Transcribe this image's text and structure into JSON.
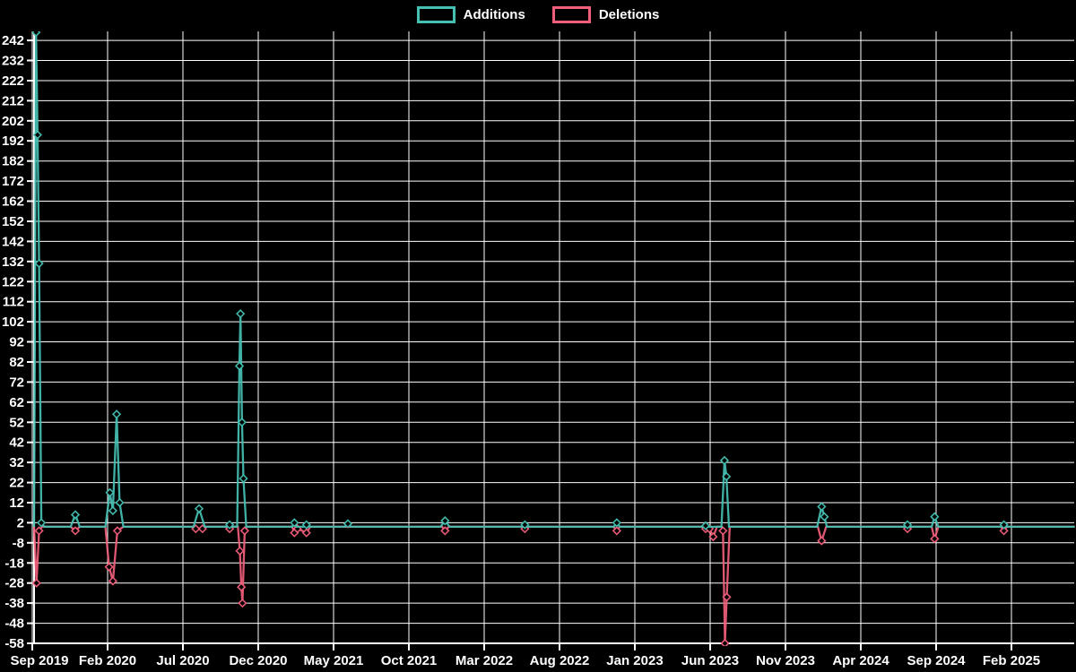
{
  "page": {
    "background": "#000000",
    "text_color": "#ffffff"
  },
  "legend": {
    "items": [
      {
        "label": "Additions",
        "color": "#45c0b2"
      },
      {
        "label": "Deletions",
        "color": "#f25f7c"
      }
    ]
  },
  "chart_data": {
    "type": "line",
    "title": "",
    "xlabel": "",
    "ylabel": "",
    "background_color": "#000000",
    "grid": {
      "horizontal": true,
      "vertical": true,
      "color": "#ffffff"
    },
    "axis_color": "#ffffff",
    "tick_label_color": "#ffffff",
    "legend_position": "top-center",
    "y_range": [
      -58,
      246.5
    ],
    "y_ticks": [
      242,
      232,
      222,
      212,
      202,
      192,
      182,
      172,
      162,
      152,
      142,
      132,
      122,
      112,
      102,
      92,
      82,
      72,
      62,
      52,
      42,
      32,
      22,
      12,
      2,
      -8,
      -18,
      -28,
      -38,
      -48,
      -58
    ],
    "x_tick_labels": [
      "Sep 2019",
      "Feb 2020",
      "Jul 2020",
      "Dec 2020",
      "May 2021",
      "Oct 2021",
      "Mar 2022",
      "Aug 2022",
      "Jan 2023",
      "Jun 2023",
      "Nov 2023",
      "Apr 2024",
      "Sep 2024",
      "Feb 2025"
    ],
    "x_tick_months": [
      0,
      5,
      10,
      15,
      20,
      25,
      30,
      35,
      40,
      45,
      50,
      55,
      60,
      65
    ],
    "x_range_months": [
      0,
      69.2
    ],
    "marker_shape": "diamond",
    "series": [
      {
        "name": "Additions",
        "color": "#45c0b2",
        "points": [
          [
            0.12,
            0
          ],
          [
            0.25,
            246
          ],
          [
            0.35,
            195
          ],
          [
            0.45,
            131
          ],
          [
            0.6,
            2
          ],
          [
            0.8,
            0
          ],
          [
            2.55,
            0
          ],
          [
            2.86,
            6
          ],
          [
            3.15,
            0
          ],
          [
            4.85,
            0
          ],
          [
            5.15,
            17
          ],
          [
            5.35,
            8
          ],
          [
            5.6,
            56
          ],
          [
            5.8,
            12
          ],
          [
            6.05,
            0
          ],
          [
            10.7,
            0
          ],
          [
            11.07,
            9
          ],
          [
            11.45,
            0
          ],
          [
            12.95,
            0
          ],
          [
            13.1,
            1
          ],
          [
            13.3,
            0
          ],
          [
            13.6,
            0
          ],
          [
            13.75,
            80
          ],
          [
            13.82,
            106
          ],
          [
            13.92,
            52
          ],
          [
            14.02,
            24
          ],
          [
            14.2,
            0
          ],
          [
            17.25,
            0
          ],
          [
            17.4,
            2
          ],
          [
            17.55,
            0
          ],
          [
            18.05,
            0
          ],
          [
            18.2,
            1
          ],
          [
            18.35,
            0
          ],
          [
            20.75,
            0
          ],
          [
            20.95,
            1.5
          ],
          [
            21.15,
            0
          ],
          [
            27.1,
            0
          ],
          [
            27.4,
            3
          ],
          [
            27.7,
            0
          ],
          [
            32.55,
            0
          ],
          [
            32.7,
            1
          ],
          [
            32.85,
            0
          ],
          [
            38.6,
            0
          ],
          [
            38.8,
            2
          ],
          [
            39.0,
            0
          ],
          [
            44.55,
            0
          ],
          [
            44.7,
            0.5
          ],
          [
            44.9,
            0
          ],
          [
            45.75,
            0
          ],
          [
            45.95,
            33
          ],
          [
            46.08,
            25
          ],
          [
            46.25,
            0
          ],
          [
            52.1,
            0
          ],
          [
            52.4,
            10
          ],
          [
            52.58,
            5
          ],
          [
            52.75,
            0
          ],
          [
            57.95,
            0
          ],
          [
            58.1,
            1
          ],
          [
            58.25,
            0
          ],
          [
            59.7,
            0
          ],
          [
            59.9,
            5
          ],
          [
            60.15,
            0
          ],
          [
            64.3,
            0
          ],
          [
            64.5,
            1
          ],
          [
            64.7,
            0
          ],
          [
            69.2,
            0
          ]
        ]
      },
      {
        "name": "Deletions",
        "color": "#f25f7c",
        "points": [
          [
            0.12,
            0
          ],
          [
            0.28,
            -28
          ],
          [
            0.45,
            -2
          ],
          [
            0.65,
            0
          ],
          [
            2.55,
            0
          ],
          [
            2.86,
            -2
          ],
          [
            3.15,
            0
          ],
          [
            4.85,
            0
          ],
          [
            5.1,
            -20
          ],
          [
            5.35,
            -27
          ],
          [
            5.65,
            -2
          ],
          [
            6.05,
            0
          ],
          [
            10.65,
            0
          ],
          [
            10.85,
            -1
          ],
          [
            11.3,
            -1
          ],
          [
            11.5,
            0
          ],
          [
            12.95,
            0
          ],
          [
            13.1,
            -1
          ],
          [
            13.3,
            0
          ],
          [
            13.65,
            0
          ],
          [
            13.78,
            -12
          ],
          [
            13.88,
            -30
          ],
          [
            13.95,
            -38
          ],
          [
            14.1,
            -2
          ],
          [
            14.25,
            0
          ],
          [
            17.25,
            0
          ],
          [
            17.4,
            -3
          ],
          [
            17.6,
            -1
          ],
          [
            18.2,
            -3
          ],
          [
            18.45,
            0
          ],
          [
            27.2,
            0
          ],
          [
            27.4,
            -2
          ],
          [
            27.65,
            0
          ],
          [
            32.55,
            0
          ],
          [
            32.7,
            -1
          ],
          [
            32.85,
            0
          ],
          [
            38.6,
            0
          ],
          [
            38.8,
            -2
          ],
          [
            39.0,
            0
          ],
          [
            44.5,
            0
          ],
          [
            44.7,
            -1
          ],
          [
            44.95,
            -1
          ],
          [
            45.2,
            -5
          ],
          [
            45.45,
            0
          ],
          [
            45.75,
            0
          ],
          [
            45.85,
            -2
          ],
          [
            45.98,
            -58
          ],
          [
            46.1,
            -35
          ],
          [
            46.3,
            0
          ],
          [
            52.15,
            0
          ],
          [
            52.4,
            -7
          ],
          [
            52.7,
            0
          ],
          [
            57.95,
            0
          ],
          [
            58.1,
            -1
          ],
          [
            58.25,
            0
          ],
          [
            59.7,
            0
          ],
          [
            59.9,
            -6
          ],
          [
            60.15,
            0
          ],
          [
            64.3,
            0
          ],
          [
            64.5,
            -2
          ],
          [
            64.7,
            0
          ],
          [
            69.2,
            0
          ]
        ]
      }
    ]
  }
}
